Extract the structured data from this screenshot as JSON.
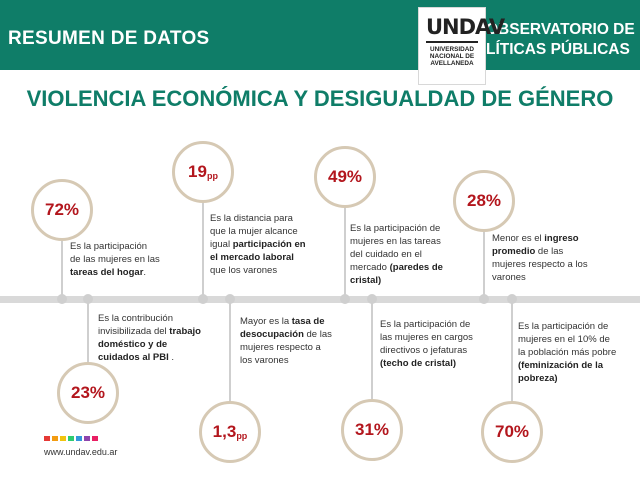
{
  "header": {
    "left_title": "RESUMEN DE DATOS",
    "logo_mark": "UNDAV",
    "logo_line1": "UNIVERSIDAD",
    "logo_line2": "NACIONAL DE",
    "logo_line3": "AVELLANEDA",
    "right_line1": "OBSERVATORIO DE",
    "right_line2": "LÍTICAS PÚBLICAS"
  },
  "title": "VIOLENCIA ECONÓMICA Y DESIGUALDAD DE GÉNERO",
  "stats": [
    {
      "value": "72%",
      "unit": "",
      "parts": [
        [
          "Es la participación de las mujeres en las ",
          false
        ],
        [
          "tareas del hogar",
          true
        ],
        [
          ".",
          false
        ]
      ]
    },
    {
      "value": "23%",
      "unit": "",
      "parts": [
        [
          "Es la contribución invisibilizada del ",
          false
        ],
        [
          "trabajo doméstico y de cuidados al PBI",
          true
        ],
        [
          " .",
          false
        ]
      ]
    },
    {
      "value": "19",
      "unit": "pp",
      "parts": [
        [
          "Es la distancia para que la mujer alcance igual ",
          false
        ],
        [
          "participación en el mercado laboral",
          true
        ],
        [
          " que los varones",
          false
        ]
      ]
    },
    {
      "value": "1,3",
      "unit": "pp",
      "parts": [
        [
          "Mayor es la ",
          false
        ],
        [
          "tasa de desocupación",
          true
        ],
        [
          " de las mujeres respecto a los varones",
          false
        ]
      ]
    },
    {
      "value": "49%",
      "unit": "",
      "parts": [
        [
          "Es la participación de mujeres en las tareas del cuidado en el mercado ",
          false
        ],
        [
          "(paredes de cristal)",
          true
        ]
      ]
    },
    {
      "value": "31%",
      "unit": "",
      "parts": [
        [
          "Es la participación de las mujeres en cargos directivos o jefaturas ",
          false
        ],
        [
          "(techo de cristal)",
          true
        ]
      ]
    },
    {
      "value": "28%",
      "unit": "",
      "parts": [
        [
          "Menor es el ",
          false
        ],
        [
          "ingreso promedio",
          true
        ],
        [
          " de las mujeres respecto a los varones",
          false
        ]
      ]
    },
    {
      "value": "70%",
      "unit": "",
      "parts": [
        [
          "Es la participación de mujeres en el 10% de la población más pobre ",
          false
        ],
        [
          "(feminización de la pobreza)",
          true
        ]
      ]
    }
  ],
  "footer": {
    "website": "www.undav.edu.ar",
    "colors": [
      "#e53935",
      "#f39c12",
      "#f1c40f",
      "#2ecc71",
      "#3498db",
      "#8e44ad",
      "#e91e63"
    ]
  }
}
